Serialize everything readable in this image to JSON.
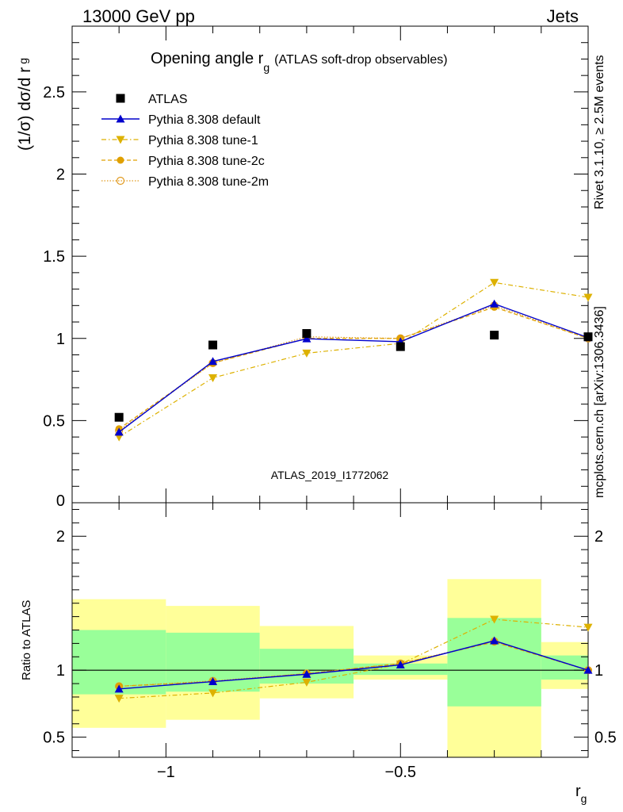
{
  "header": {
    "left": "13000 GeV pp",
    "right": "Jets"
  },
  "side_labels": {
    "rivet": "Rivet 3.1.10, ≥ 2.5M events",
    "mcplots": "mcplots.cern.ch [arXiv:1306.3436]"
  },
  "watermark": "ATLAS_2019_I1772062",
  "colors": {
    "atlas": "#000000",
    "default": "#0000cc",
    "tune1": "#ddb100",
    "tune2c": "#e0a000",
    "tune2m": "#e09a20",
    "band_inner": "#99ff99",
    "band_outer": "#ffff99"
  },
  "chart_data": [
    {
      "type": "scatter",
      "title_main": "Opening angle r",
      "title_sub": "g",
      "title_rest": "(ATLAS soft-drop observables)",
      "ylabel_main": "(1/σ) dσ/d r",
      "ylabel_sub": "g",
      "xlim": [
        -1.2,
        -0.1
      ],
      "ylim": [
        0,
        2.9
      ],
      "yticks": [
        0.5,
        1,
        1.5,
        2,
        2.5
      ],
      "yticklabels": [
        "0.5",
        "1",
        "1.5",
        "2",
        "2.5"
      ],
      "y_bottom_label": "0",
      "x": [
        -1.1,
        -0.9,
        -0.7,
        -0.5,
        -0.3,
        -0.1
      ],
      "series": [
        {
          "name": "ATLAS",
          "style": "data",
          "values": [
            0.52,
            0.96,
            1.03,
            0.95,
            1.02,
            1.01
          ]
        },
        {
          "name": "Pythia 8.308 default",
          "style": "default",
          "values": [
            0.43,
            0.86,
            0.998,
            0.98,
            1.21,
            1.005
          ]
        },
        {
          "name": "Pythia 8.308 tune-1",
          "style": "tune1",
          "values": [
            0.4,
            0.76,
            0.91,
            0.97,
            1.34,
            1.25
          ]
        },
        {
          "name": "Pythia 8.308 tune-2c",
          "style": "tune2c",
          "values": [
            0.45,
            0.85,
            1.0,
            1.0,
            1.19,
            1.0
          ]
        },
        {
          "name": "Pythia 8.308 tune-2m",
          "style": "tune2m",
          "values": [
            0.44,
            0.85,
            1.01,
            1.0,
            1.2,
            1.0
          ]
        }
      ]
    },
    {
      "type": "scatter",
      "ylabel": "Ratio to ATLAS",
      "xlabel_main": "r",
      "xlabel_sub": "g",
      "xlim": [
        -1.2,
        -0.1
      ],
      "ylim": [
        0.35,
        2.25
      ],
      "yticks": [
        0.5,
        1,
        2
      ],
      "yticklabels": [
        "0.5",
        "1",
        "2"
      ],
      "xticks": [
        -1,
        -0.5
      ],
      "xticklabels": [
        "−1",
        "−0.5"
      ],
      "bins": [
        {
          "lo": -1.2,
          "hi": -1.0,
          "inner": [
            0.82,
            1.3
          ],
          "outer": [
            0.57,
            1.53
          ]
        },
        {
          "lo": -1.0,
          "hi": -0.8,
          "inner": [
            0.84,
            1.28
          ],
          "outer": [
            0.63,
            1.48
          ]
        },
        {
          "lo": -0.8,
          "hi": -0.6,
          "inner": [
            0.9,
            1.16
          ],
          "outer": [
            0.79,
            1.33
          ]
        },
        {
          "lo": -0.6,
          "hi": -0.4,
          "inner": [
            0.965,
            1.05
          ],
          "outer": [
            0.93,
            1.11
          ]
        },
        {
          "lo": -0.4,
          "hi": -0.2,
          "inner": [
            0.73,
            1.39
          ],
          "outer": [
            0.3,
            1.68
          ]
        },
        {
          "lo": -0.2,
          "hi": -0.1,
          "inner": [
            0.93,
            1.11
          ],
          "outer": [
            0.86,
            1.21
          ]
        }
      ],
      "x": [
        -1.1,
        -0.9,
        -0.7,
        -0.5,
        -0.3,
        -0.1
      ],
      "series": [
        {
          "name": "Pythia 8.308 default",
          "style": "default",
          "values": [
            0.86,
            0.915,
            0.97,
            1.04,
            1.22,
            1.0
          ]
        },
        {
          "name": "Pythia 8.308 tune-1",
          "style": "tune1",
          "values": [
            0.79,
            0.83,
            0.91,
            1.045,
            1.38,
            1.32
          ]
        },
        {
          "name": "Pythia 8.308 tune-2c",
          "style": "tune2c",
          "values": [
            0.88,
            0.915,
            0.975,
            1.05,
            1.21,
            1.0
          ]
        },
        {
          "name": "Pythia 8.308 tune-2m",
          "style": "tune2m",
          "values": [
            0.88,
            0.92,
            0.975,
            1.05,
            1.215,
            1.0
          ]
        }
      ]
    }
  ]
}
